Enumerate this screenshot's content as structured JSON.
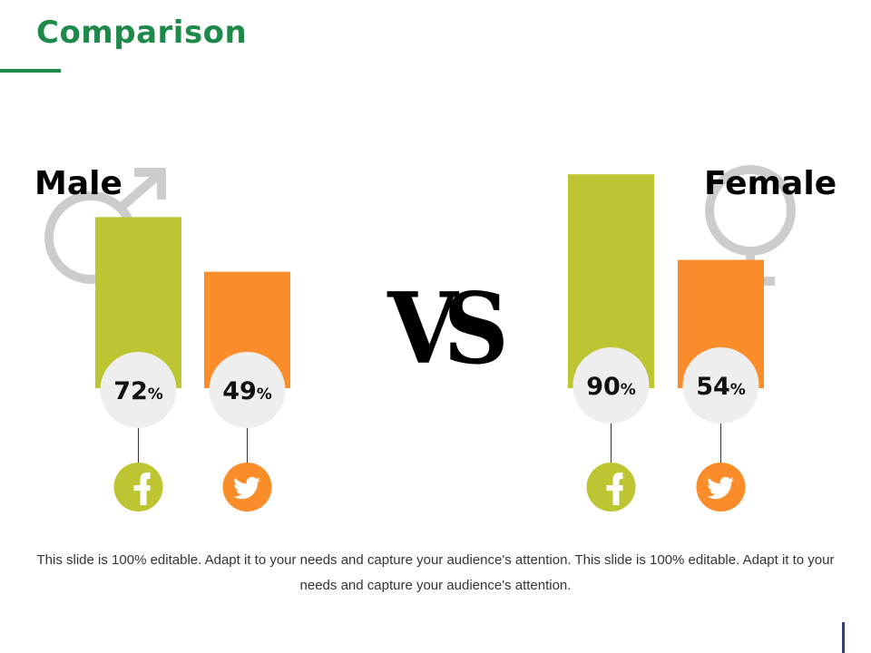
{
  "title": "Comparison",
  "vs_text": "VS",
  "footer": "This slide is 100% editable. Adapt it to your needs and capture your audience's attention. This slide is 100% editable. Adapt it to your needs and capture your audience's attention.",
  "percent_sign": "%",
  "colors": {
    "title": "#1e8a4a",
    "facebook": "#bdc632",
    "twitter": "#fb8c2a",
    "bubble": "#eeeeee",
    "gender_symbol": "#cccccc"
  },
  "chart_data": {
    "type": "bar",
    "unit": "%",
    "groups": [
      {
        "name": "Male",
        "icon": "male-symbol-icon",
        "bars": [
          {
            "network": "facebook",
            "icon": "facebook-icon",
            "value": 72
          },
          {
            "network": "twitter",
            "icon": "twitter-icon",
            "value": 49
          }
        ]
      },
      {
        "name": "Female",
        "icon": "female-symbol-icon",
        "bars": [
          {
            "network": "facebook",
            "icon": "facebook-icon",
            "value": 90
          },
          {
            "network": "twitter",
            "icon": "twitter-icon",
            "value": 54
          }
        ]
      }
    ]
  }
}
